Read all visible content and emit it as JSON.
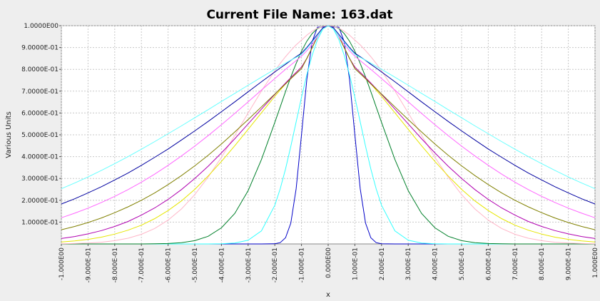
{
  "chart_data": {
    "type": "line",
    "title": "Current File Name: 163.dat",
    "xlabel": "x",
    "ylabel": "Various Units",
    "xlim": [
      -1.0,
      1.0
    ],
    "ylim": [
      0.0,
      1.0
    ],
    "grid": true,
    "legend": "none",
    "x_ticks": [
      -1.0,
      -0.9,
      -0.8,
      -0.7,
      -0.6,
      -0.5,
      -0.4,
      -0.3,
      -0.2,
      -0.1,
      0.0,
      0.1,
      0.2,
      0.3,
      0.4,
      0.5,
      0.6,
      0.7,
      0.8,
      0.9,
      1.0
    ],
    "x_tick_labels": [
      "-1.000E00",
      "-9.000E-01",
      "-8.000E-01",
      "-7.000E-01",
      "-6.000E-01",
      "-5.000E-01",
      "-4.000E-01",
      "-3.000E-01",
      "-2.000E-01",
      "-1.000E-01",
      "0.000E00",
      "1.000E-01",
      "2.000E-01",
      "3.000E-01",
      "4.000E-01",
      "5.000E-01",
      "6.000E-01",
      "7.000E-01",
      "8.000E-01",
      "9.000E-01",
      "1.000E00"
    ],
    "y_ticks": [
      0.1,
      0.2,
      0.3,
      0.4,
      0.5,
      0.6,
      0.7,
      0.8,
      0.9,
      1.0
    ],
    "y_tick_labels": [
      "1.0000E-01",
      "2.0000E-01",
      "3.0000E-01",
      "4.0000E-01",
      "5.0000E-01",
      "6.0000E-01",
      "7.0000E-01",
      "8.0000E-01",
      "9.0000E-01",
      "1.0000E00"
    ],
    "x": [
      -1.0,
      -0.95,
      -0.9,
      -0.85,
      -0.8,
      -0.75,
      -0.7,
      -0.65,
      -0.6,
      -0.55,
      -0.5,
      -0.45,
      -0.4,
      -0.35,
      -0.3,
      -0.25,
      -0.2,
      -0.18,
      -0.16,
      -0.14,
      -0.12,
      -0.1,
      -0.08,
      -0.06,
      -0.04,
      -0.02,
      0.0,
      0.02,
      0.04,
      0.06,
      0.08,
      0.1,
      0.12,
      0.14,
      0.16,
      0.18,
      0.2,
      0.25,
      0.3,
      0.35,
      0.4,
      0.45,
      0.5,
      0.55,
      0.6,
      0.65,
      0.7,
      0.75,
      0.8,
      0.85,
      0.9,
      0.95,
      1.0
    ],
    "series": [
      {
        "color": "#0000c8",
        "values": [
          0.0,
          0.0,
          0.0,
          0.0,
          0.0,
          0.0,
          0.0,
          0.0,
          0.0,
          0.0,
          0.0,
          0.0,
          0.0,
          0.0,
          0.0,
          0.0,
          0.001,
          0.006,
          0.028,
          0.095,
          0.253,
          0.5,
          0.755,
          0.927,
          0.993,
          0.994,
          1.0,
          0.994,
          0.993,
          0.927,
          0.755,
          0.5,
          0.253,
          0.095,
          0.028,
          0.006,
          0.001,
          0.0,
          0.0,
          0.0,
          0.0,
          0.0,
          0.0,
          0.0,
          0.0,
          0.0,
          0.0,
          0.0,
          0.0,
          0.0,
          0.0,
          0.0,
          0.0
        ]
      },
      {
        "color": "#33ffff",
        "values": [
          0.0,
          0.0,
          0.0,
          0.0,
          0.0,
          0.0,
          0.0,
          0.0,
          0.0,
          0.0,
          0.0,
          0.0,
          0.001,
          0.004,
          0.017,
          0.06,
          0.177,
          0.252,
          0.343,
          0.447,
          0.559,
          0.672,
          0.776,
          0.865,
          0.936,
          0.984,
          1.0,
          0.984,
          0.936,
          0.865,
          0.776,
          0.672,
          0.559,
          0.447,
          0.343,
          0.252,
          0.177,
          0.06,
          0.017,
          0.004,
          0.001,
          0.0,
          0.0,
          0.0,
          0.0,
          0.0,
          0.0,
          0.0,
          0.0,
          0.0,
          0.0,
          0.0,
          0.0
        ]
      },
      {
        "color": "#00802a",
        "values": [
          0.0,
          0.0,
          0.0,
          0.0,
          0.0,
          0.0,
          0.0,
          0.001,
          0.002,
          0.006,
          0.015,
          0.035,
          0.074,
          0.14,
          0.244,
          0.387,
          0.557,
          0.627,
          0.698,
          0.765,
          0.827,
          0.883,
          0.929,
          0.964,
          0.987,
          0.998,
          1.0,
          0.998,
          0.987,
          0.964,
          0.929,
          0.883,
          0.827,
          0.765,
          0.698,
          0.627,
          0.557,
          0.387,
          0.244,
          0.14,
          0.074,
          0.035,
          0.015,
          0.006,
          0.002,
          0.001,
          0.0,
          0.0,
          0.0,
          0.0,
          0.0,
          0.0,
          0.0
        ]
      },
      {
        "color": "#ffb6c8",
        "values": [
          0.001,
          0.002,
          0.004,
          0.008,
          0.015,
          0.026,
          0.044,
          0.071,
          0.109,
          0.16,
          0.226,
          0.306,
          0.397,
          0.497,
          0.6,
          0.701,
          0.793,
          0.827,
          0.858,
          0.886,
          0.912,
          0.934,
          0.957,
          0.975,
          0.989,
          0.997,
          1.0,
          0.997,
          0.989,
          0.975,
          0.957,
          0.934,
          0.912,
          0.886,
          0.858,
          0.827,
          0.793,
          0.701,
          0.6,
          0.497,
          0.397,
          0.306,
          0.226,
          0.16,
          0.109,
          0.071,
          0.044,
          0.026,
          0.015,
          0.008,
          0.004,
          0.002,
          0.001
        ]
      },
      {
        "color": "#e6e600",
        "values": [
          0.009,
          0.014,
          0.021,
          0.031,
          0.045,
          0.063,
          0.086,
          0.116,
          0.153,
          0.197,
          0.25,
          0.311,
          0.378,
          0.45,
          0.525,
          0.601,
          0.676,
          0.705,
          0.733,
          0.76,
          0.786,
          0.81,
          0.85,
          0.9,
          0.95,
          0.99,
          1.0,
          0.99,
          0.95,
          0.9,
          0.85,
          0.81,
          0.786,
          0.76,
          0.733,
          0.705,
          0.676,
          0.601,
          0.525,
          0.45,
          0.378,
          0.311,
          0.25,
          0.197,
          0.153,
          0.116,
          0.086,
          0.063,
          0.045,
          0.031,
          0.021,
          0.014,
          0.009
        ]
      },
      {
        "color": "#b000b0",
        "values": [
          0.025,
          0.034,
          0.046,
          0.061,
          0.08,
          0.103,
          0.132,
          0.165,
          0.204,
          0.249,
          0.3,
          0.356,
          0.417,
          0.482,
          0.55,
          0.618,
          0.685,
          0.711,
          0.737,
          0.762,
          0.786,
          0.81,
          0.85,
          0.9,
          0.95,
          0.99,
          1.0,
          0.99,
          0.95,
          0.9,
          0.85,
          0.81,
          0.786,
          0.762,
          0.737,
          0.711,
          0.685,
          0.618,
          0.55,
          0.482,
          0.417,
          0.356,
          0.3,
          0.249,
          0.204,
          0.165,
          0.132,
          0.103,
          0.08,
          0.061,
          0.046,
          0.034,
          0.025
        ]
      },
      {
        "color": "#808000",
        "values": [
          0.065,
          0.08,
          0.098,
          0.119,
          0.143,
          0.17,
          0.2,
          0.234,
          0.272,
          0.313,
          0.358,
          0.406,
          0.458,
          0.513,
          0.57,
          0.628,
          0.687,
          0.71,
          0.733,
          0.757,
          0.78,
          0.803,
          0.85,
          0.9,
          0.95,
          0.99,
          1.0,
          0.99,
          0.95,
          0.9,
          0.85,
          0.803,
          0.78,
          0.757,
          0.733,
          0.71,
          0.687,
          0.628,
          0.57,
          0.513,
          0.458,
          0.406,
          0.358,
          0.313,
          0.272,
          0.234,
          0.2,
          0.17,
          0.143,
          0.119,
          0.098,
          0.08,
          0.065
        ]
      },
      {
        "color": "#ff66ff",
        "values": [
          0.12,
          0.141,
          0.164,
          0.19,
          0.218,
          0.249,
          0.283,
          0.32,
          0.36,
          0.403,
          0.448,
          0.496,
          0.546,
          0.598,
          0.651,
          0.705,
          0.758,
          0.779,
          0.8,
          0.82,
          0.84,
          0.86,
          0.885,
          0.915,
          0.95,
          0.99,
          1.0,
          0.99,
          0.95,
          0.915,
          0.885,
          0.86,
          0.84,
          0.82,
          0.8,
          0.779,
          0.758,
          0.705,
          0.651,
          0.598,
          0.546,
          0.496,
          0.448,
          0.403,
          0.36,
          0.32,
          0.283,
          0.249,
          0.218,
          0.19,
          0.164,
          0.141,
          0.12
        ]
      },
      {
        "color": "#0000a0",
        "values": [
          0.183,
          0.207,
          0.234,
          0.262,
          0.293,
          0.325,
          0.36,
          0.397,
          0.435,
          0.476,
          0.518,
          0.561,
          0.606,
          0.651,
          0.697,
          0.743,
          0.788,
          0.806,
          0.823,
          0.841,
          0.858,
          0.874,
          0.9,
          0.93,
          0.96,
          0.99,
          1.0,
          0.99,
          0.96,
          0.93,
          0.9,
          0.874,
          0.858,
          0.841,
          0.823,
          0.806,
          0.788,
          0.743,
          0.697,
          0.651,
          0.606,
          0.561,
          0.518,
          0.476,
          0.435,
          0.397,
          0.36,
          0.325,
          0.293,
          0.262,
          0.234,
          0.207,
          0.183
        ]
      },
      {
        "color": "#66ffff",
        "values": [
          0.253,
          0.279,
          0.307,
          0.337,
          0.368,
          0.4,
          0.434,
          0.469,
          0.505,
          0.541,
          0.578,
          0.615,
          0.653,
          0.69,
          0.727,
          0.764,
          0.8,
          0.814,
          0.828,
          0.842,
          0.855,
          0.868,
          0.895,
          0.925,
          0.955,
          0.985,
          1.0,
          0.985,
          0.955,
          0.925,
          0.895,
          0.868,
          0.855,
          0.842,
          0.828,
          0.814,
          0.8,
          0.764,
          0.727,
          0.69,
          0.653,
          0.615,
          0.578,
          0.541,
          0.505,
          0.469,
          0.434,
          0.4,
          0.368,
          0.337,
          0.307,
          0.279,
          0.253
        ]
      }
    ]
  }
}
